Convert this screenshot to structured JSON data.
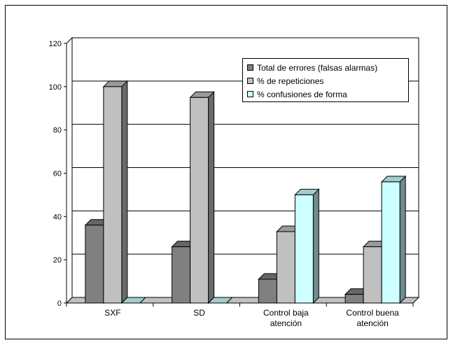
{
  "chart_data": {
    "type": "bar",
    "categories": [
      "SXF",
      "SD",
      "Control baja atención",
      "Control buena atención"
    ],
    "category_lines": [
      [
        "SXF"
      ],
      [
        "SD"
      ],
      [
        "Control baja",
        "atención"
      ],
      [
        "Control buena",
        "atención"
      ]
    ],
    "series": [
      {
        "name": "Total de errores (falsas alarmas)",
        "values": [
          36,
          26,
          11,
          4
        ],
        "color": "#808080"
      },
      {
        "name": "% de repeticiones",
        "values": [
          100,
          95,
          33,
          26
        ],
        "color": "#c0c0c0"
      },
      {
        "name": "% confusiones de forma",
        "values": [
          0,
          0,
          50,
          56
        ],
        "color": "#ccffff"
      }
    ],
    "yticks": [
      0,
      20,
      40,
      60,
      80,
      100,
      120
    ],
    "ylim": [
      0,
      120
    ],
    "grid": true,
    "legend": "top-right",
    "style": "3d-columns"
  }
}
